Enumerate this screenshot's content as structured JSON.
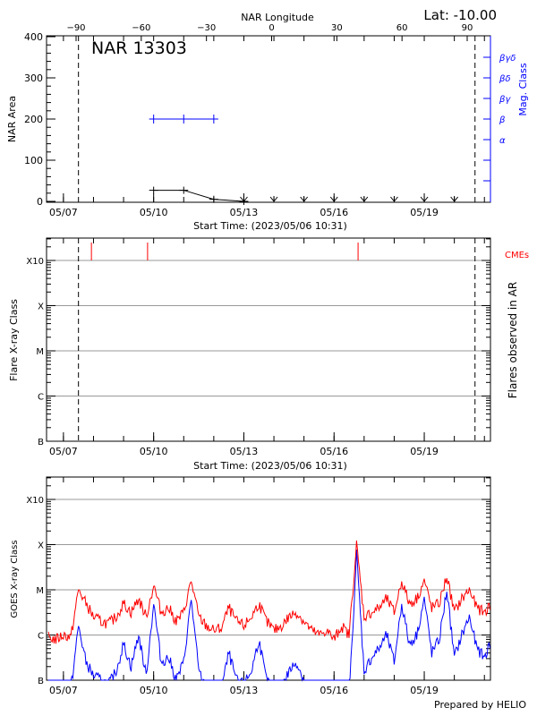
{
  "header": {
    "lat_label": "Lat: -10.00",
    "footer": "Prepared by HELIO"
  },
  "time_axis": {
    "start": "2023-05-06T10:31",
    "end": "2023-05-21T04:50",
    "label": "Start Time: (2023/05/06 10:31)",
    "ticks": [
      {
        "date": "2023-05-07T00:00",
        "label": "05/07"
      },
      {
        "date": "2023-05-10T00:00",
        "label": "05/10"
      },
      {
        "date": "2023-05-13T00:00",
        "label": "05/13"
      },
      {
        "date": "2023-05-16T00:00",
        "label": "05/16"
      },
      {
        "date": "2023-05-19T00:00",
        "label": "05/19"
      }
    ]
  },
  "chart_data": [
    {
      "type": "line",
      "title": "NAR 13303",
      "ylabel": "NAR Area",
      "ylim": [
        0,
        400
      ],
      "yticks": [
        "0",
        "100",
        "200",
        "300",
        "400"
      ],
      "top_axis": {
        "label": "NAR Longitude",
        "range": [
          -90,
          90
        ],
        "ticks": [
          "-90",
          "-60",
          "-30",
          "0",
          "30",
          "60",
          "90"
        ]
      },
      "right_axis": {
        "label": "Mag. Class",
        "color": "#0000ff",
        "classes": [
          "α",
          "β",
          "βγ",
          "βδ",
          "βγδ"
        ]
      },
      "limb_lines": [
        "2023-05-07T12:00",
        "2023-05-20T16:30"
      ],
      "area_series": [
        {
          "date": "2023-05-10T00:00",
          "area": 27
        },
        {
          "date": "2023-05-11T00:00",
          "area": 27
        },
        {
          "date": "2023-05-12T00:00",
          "area": 5
        },
        {
          "date": "2023-05-13T00:00",
          "area": 0
        }
      ],
      "beyond_limb_markers": [
        "2023-05-13T00:00",
        "2023-05-14T00:00",
        "2023-05-15T00:00",
        "2023-05-16T00:00",
        "2023-05-17T00:00",
        "2023-05-18T00:00",
        "2023-05-19T00:00",
        "2023-05-20T00:00"
      ],
      "mag_class_series": [
        {
          "date": "2023-05-10T00:00",
          "class": "β"
        },
        {
          "date": "2023-05-11T00:00",
          "class": "β"
        },
        {
          "date": "2023-05-12T00:00",
          "class": "β"
        }
      ]
    },
    {
      "type": "scatter",
      "ylabel": "Flare X-ray Class",
      "right_label": "Flares observed in AR",
      "yticks": [
        "B",
        "C",
        "M",
        "X",
        "X10"
      ],
      "cme_label": "CMEs",
      "cme_color": "#ff0000",
      "cmes": [
        "2023-05-07T22:20",
        "2023-05-09T19:10",
        "2023-05-16T19:10"
      ],
      "flares": []
    },
    {
      "type": "line",
      "ylabel": "GOES X-ray Class",
      "yticks": [
        "B",
        "C",
        "M",
        "X",
        "X10"
      ],
      "series_colors": [
        "#ff0000",
        "#0000ff"
      ],
      "sample_start": "2023-05-06T12:00",
      "sample_step_hours": 6,
      "long_channel_log_flux": [
        -6.05,
        -6.1,
        -6.0,
        -6.05,
        -5.0,
        -5.3,
        -5.6,
        -5.7,
        -5.75,
        -5.6,
        -5.3,
        -5.5,
        -5.2,
        -5.6,
        -4.9,
        -5.5,
        -5.4,
        -5.7,
        -5.5,
        -4.8,
        -5.6,
        -5.8,
        -5.9,
        -5.85,
        -5.4,
        -5.7,
        -5.8,
        -5.6,
        -5.3,
        -5.7,
        -5.9,
        -5.8,
        -5.6,
        -5.5,
        -5.7,
        -5.9,
        -6.0,
        -5.9,
        -6.1,
        -5.8,
        -6.0,
        -4.0,
        -5.6,
        -5.5,
        -5.4,
        -5.2,
        -5.5,
        -4.8,
        -5.3,
        -5.2,
        -4.8,
        -5.4,
        -5.3,
        -4.7,
        -5.5,
        -5.2,
        -5.0,
        -5.4,
        -5.5,
        -5.3
      ],
      "short_channel_log_flux": [
        -7.4,
        -7.1,
        -7.3,
        -7.2,
        -5.8,
        -6.6,
        -6.9,
        -7.0,
        -7.1,
        -6.8,
        -6.2,
        -6.7,
        -6.0,
        -6.9,
        -5.3,
        -6.6,
        -6.5,
        -7.0,
        -6.6,
        -5.2,
        -6.8,
        -7.2,
        -7.3,
        -7.2,
        -6.4,
        -7.0,
        -7.1,
        -6.8,
        -6.1,
        -7.0,
        -7.3,
        -7.2,
        -6.8,
        -6.6,
        -7.0,
        -7.3,
        -7.5,
        -7.3,
        -7.5,
        -7.1,
        -7.4,
        -4.2,
        -6.8,
        -6.5,
        -6.3,
        -6.0,
        -6.6,
        -5.3,
        -6.2,
        -6.0,
        -5.2,
        -6.4,
        -6.1,
        -5.0,
        -6.5,
        -6.0,
        -5.6,
        -6.3,
        -6.5,
        -6.1
      ]
    }
  ]
}
